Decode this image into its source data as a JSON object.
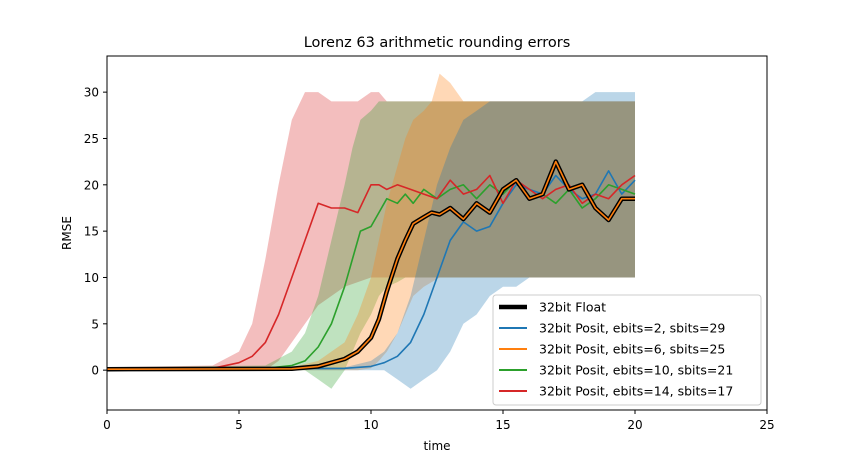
{
  "chart_data": {
    "type": "line",
    "title": "Lorenz 63 arithmetic rounding errors",
    "xlabel": "time",
    "ylabel": "RMSE",
    "xlim": [
      0,
      25
    ],
    "ylim": [
      -4.3,
      33.9
    ],
    "xticks": [
      0,
      5,
      10,
      15,
      20,
      25
    ],
    "yticks": [
      0,
      5,
      10,
      15,
      20,
      25,
      30
    ],
    "legend_position": "lower-right",
    "grid": false,
    "series": [
      {
        "name": "32bit Float",
        "color": "#000000",
        "x": [
          0,
          7,
          8,
          8.5,
          9,
          9.5,
          10,
          10.3,
          10.6,
          11,
          11.3,
          11.6,
          12,
          12.3,
          12.6,
          13,
          13.5,
          14,
          14.5,
          15,
          15.5,
          16,
          16.5,
          17,
          17.5,
          18,
          18.5,
          19,
          19.5,
          20
        ],
        "y": [
          0.1,
          0.15,
          0.4,
          0.8,
          1.2,
          2,
          3.5,
          5.5,
          8.5,
          12,
          14,
          15.8,
          16.5,
          17,
          16.8,
          17.5,
          16.3,
          18,
          17,
          19.5,
          20.5,
          18.5,
          19,
          22.5,
          19.5,
          20,
          17.5,
          16.2,
          18.5,
          18.5
        ],
        "band_lower": [
          0,
          0,
          0,
          0,
          0,
          0,
          0.2,
          1,
          2,
          4,
          6,
          8,
          9,
          9.5,
          10,
          10,
          10,
          10,
          10,
          10,
          10,
          10,
          10,
          10,
          10,
          10,
          10,
          10,
          10,
          10
        ],
        "band_upper": [
          0.3,
          0.3,
          1,
          2,
          3,
          6,
          10,
          14,
          18,
          22,
          25,
          27,
          28,
          29,
          29,
          29,
          29,
          29,
          29,
          29,
          29,
          29,
          29,
          29,
          29,
          29,
          29,
          29,
          29,
          29
        ]
      },
      {
        "name": "32bit Posit, ebits=2, sbits=29",
        "color": "#1f77b4",
        "x": [
          0,
          9,
          10,
          10.5,
          11,
          11.5,
          12,
          12.5,
          13,
          13.5,
          14,
          14.5,
          15,
          15.5,
          16,
          16.5,
          17,
          17.5,
          18,
          18.5,
          19,
          19.5,
          20
        ],
        "y": [
          0.1,
          0.2,
          0.4,
          0.8,
          1.5,
          3,
          6,
          10,
          14,
          16,
          15,
          15.5,
          18,
          20,
          19.5,
          19,
          21,
          19.5,
          18.5,
          19,
          21.5,
          19,
          20.5
        ],
        "band_lower": [
          0,
          0,
          0,
          0,
          -1,
          -2,
          -1,
          0,
          2,
          5,
          6,
          8,
          9,
          9,
          10,
          10,
          10,
          10,
          10,
          10,
          10,
          10,
          10
        ],
        "band_upper": [
          0.2,
          0.3,
          1,
          2,
          4,
          8,
          14,
          20,
          24,
          27,
          28,
          29,
          29,
          29,
          29,
          29,
          29,
          29,
          29,
          30,
          30,
          30,
          30
        ]
      },
      {
        "name": "32bit Posit, ebits=6, sbits=25",
        "color": "#ff7f0e",
        "x": [
          0,
          7,
          8,
          8.5,
          9,
          9.5,
          10,
          10.3,
          10.6,
          11,
          11.3,
          11.6,
          12,
          12.3,
          12.6,
          13,
          13.5,
          14,
          14.5,
          15,
          15.5,
          16,
          16.5,
          17,
          17.5,
          18,
          18.5,
          19,
          19.5,
          20
        ],
        "y": [
          0.1,
          0.15,
          0.4,
          0.8,
          1.2,
          2,
          3.5,
          5.5,
          8.5,
          12,
          14,
          15.8,
          16.5,
          17,
          16.8,
          17.5,
          16.3,
          18,
          17,
          19.5,
          20.5,
          18.5,
          19,
          22.5,
          19.5,
          20,
          17.5,
          16.2,
          18.5,
          18.5
        ],
        "band_lower": [
          0,
          0,
          0,
          0,
          0,
          0,
          0.2,
          1,
          2,
          4,
          6,
          8,
          9,
          9.5,
          10,
          10,
          10,
          10,
          10,
          10,
          10,
          10,
          10,
          10,
          10,
          10,
          10,
          10,
          10,
          10
        ],
        "band_upper": [
          0.3,
          0.3,
          1,
          2,
          3,
          6,
          10,
          14,
          18,
          22,
          25,
          27,
          28,
          29,
          32,
          31,
          29,
          29,
          29,
          29,
          29,
          29,
          29,
          29,
          29,
          29,
          29,
          29,
          29,
          29
        ]
      },
      {
        "name": "32bit Posit, ebits=10, sbits=21",
        "color": "#2ca02c",
        "x": [
          0,
          6,
          7,
          7.5,
          8,
          8.5,
          9,
          9.3,
          9.6,
          10,
          10.3,
          10.6,
          11,
          11.3,
          11.6,
          12,
          12.5,
          13,
          13.5,
          14,
          14.5,
          15,
          15.5,
          16,
          16.5,
          17,
          17.5,
          18,
          18.5,
          19,
          19.5,
          20
        ],
        "y": [
          0.1,
          0.2,
          0.5,
          1,
          2.5,
          5,
          9,
          12,
          15,
          15.5,
          17,
          18.5,
          18,
          19,
          18,
          19.5,
          18.5,
          19.5,
          20,
          18.5,
          20,
          19,
          20.5,
          18.5,
          19,
          18,
          19.5,
          17.5,
          18.5,
          20,
          19.5,
          19
        ],
        "band_lower": [
          0,
          0,
          0,
          0,
          -1,
          -2,
          0,
          2,
          4,
          6,
          8,
          9,
          9.5,
          10,
          10,
          10,
          10,
          10,
          10,
          10,
          10,
          10,
          10,
          10,
          10,
          10,
          10,
          10,
          10,
          10,
          10,
          10
        ],
        "band_upper": [
          0.3,
          0.5,
          2,
          4,
          8,
          14,
          20,
          24,
          27,
          28,
          29,
          29,
          29,
          29,
          29,
          29,
          29,
          29,
          29,
          29,
          29,
          29,
          29,
          29,
          29,
          29,
          29,
          29,
          29,
          29,
          29,
          29
        ]
      },
      {
        "name": "32bit Posit, ebits=14, sbits=17",
        "color": "#d62728",
        "x": [
          0,
          4,
          5,
          5.5,
          6,
          6.5,
          7,
          7.5,
          8,
          8.5,
          9,
          9.5,
          10,
          10.3,
          10.6,
          11,
          11.5,
          12,
          12.5,
          13,
          13.5,
          14,
          14.5,
          15,
          15.5,
          16,
          16.5,
          17,
          17.5,
          18,
          18.5,
          19,
          19.5,
          20
        ],
        "y": [
          0.1,
          0.2,
          0.8,
          1.5,
          3,
          6,
          10,
          14,
          18,
          17.5,
          17.5,
          17,
          20,
          20,
          19.5,
          20,
          19.5,
          19,
          18.5,
          20.5,
          19,
          19.5,
          21,
          18,
          20.5,
          19.5,
          18.5,
          19.5,
          20,
          18,
          19,
          18.5,
          20,
          21
        ],
        "band_lower": [
          0,
          0,
          0,
          0,
          0,
          1,
          3,
          5,
          7,
          8,
          9,
          9.5,
          10,
          10,
          10,
          10,
          10,
          10,
          10,
          10,
          10,
          10,
          10,
          10,
          10,
          10,
          10,
          10,
          10,
          10,
          10,
          10,
          10,
          10
        ],
        "band_upper": [
          0.3,
          0.5,
          2,
          5,
          12,
          20,
          27,
          30,
          30,
          29,
          29,
          29,
          30,
          30,
          29,
          29,
          29,
          29,
          29,
          29,
          29,
          29,
          29,
          29,
          29,
          29,
          29,
          29,
          29,
          29,
          29,
          29,
          29,
          29
        ]
      }
    ]
  }
}
